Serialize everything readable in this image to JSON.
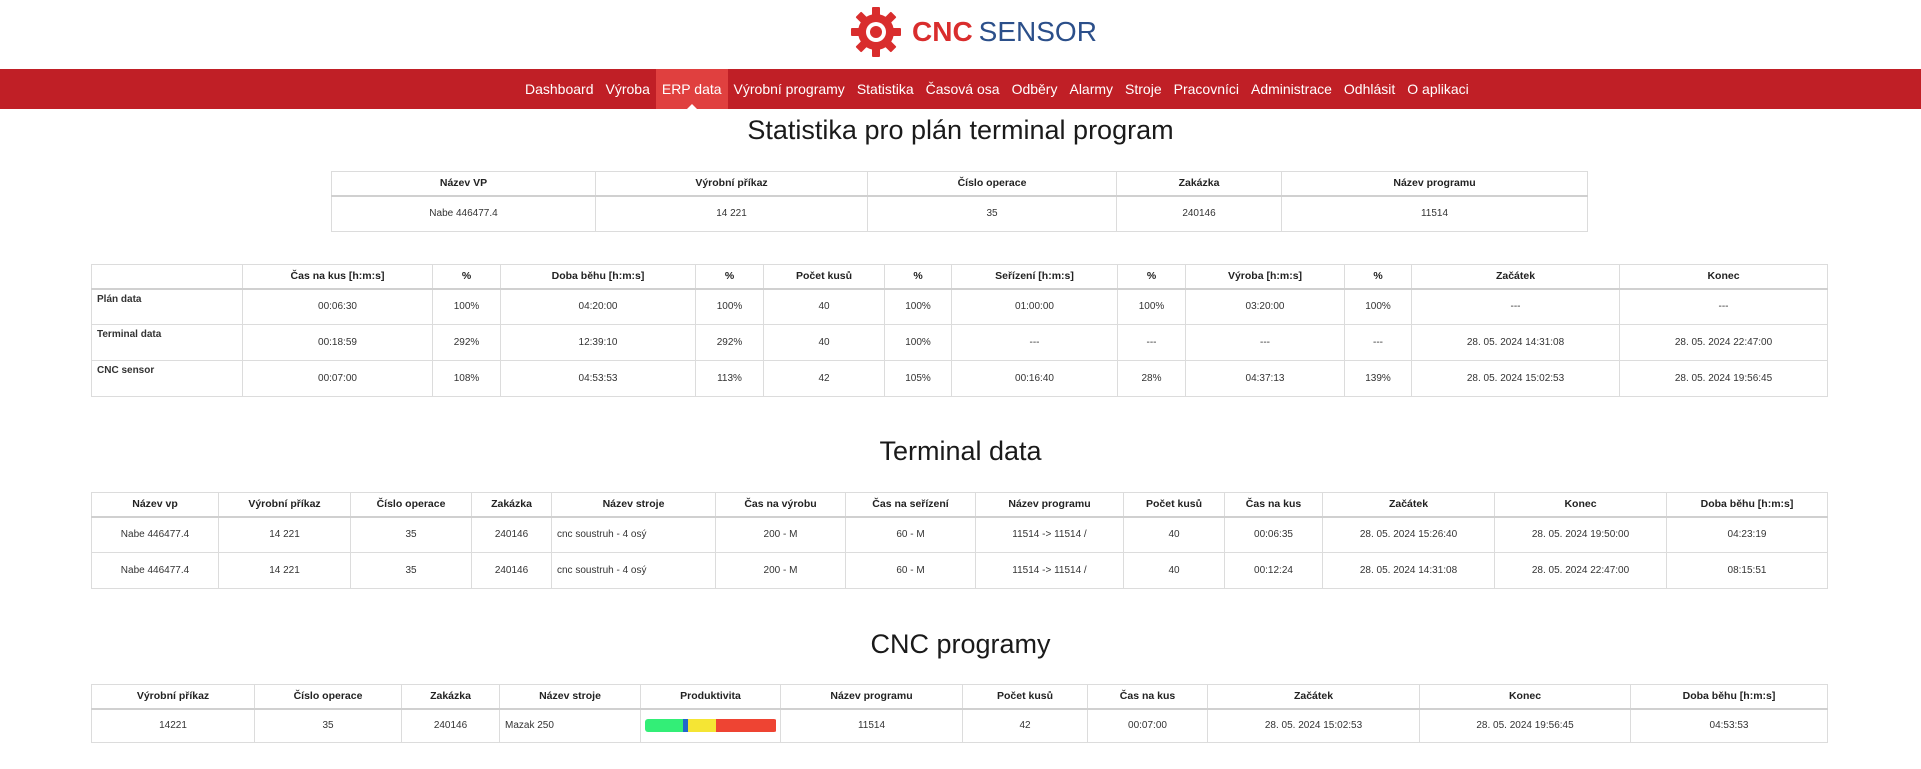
{
  "brand": {
    "cnc": "CNC",
    "sensor": "SENSOR"
  },
  "nav": [
    {
      "label": "Dashboard",
      "active": false
    },
    {
      "label": "Výroba",
      "active": false
    },
    {
      "label": "ERP data",
      "active": true
    },
    {
      "label": "Výrobní programy",
      "active": false
    },
    {
      "label": "Statistika",
      "active": false
    },
    {
      "label": "Časová osa",
      "active": false
    },
    {
      "label": "Odběry",
      "active": false
    },
    {
      "label": "Alarmy",
      "active": false
    },
    {
      "label": "Stroje",
      "active": false
    },
    {
      "label": "Pracovníci",
      "active": false
    },
    {
      "label": "Administrace",
      "active": false
    },
    {
      "label": "Odhlásit",
      "active": false
    },
    {
      "label": "O aplikaci",
      "active": false
    }
  ],
  "plan": {
    "title": "Statistika pro plán terminal program",
    "headers": [
      "Název VP",
      "Výrobní příkaz",
      "Číslo operace",
      "Zakázka",
      "Název programu"
    ],
    "row": [
      "Nabe 446477.4",
      "14 221",
      "35",
      "240146",
      "11514"
    ]
  },
  "stats": {
    "headers": [
      "",
      "Čas na kus [h:m:s]",
      "%",
      "Doba běhu [h:m:s]",
      "%",
      "Počet kusů",
      "%",
      "Seřízení [h:m:s]",
      "%",
      "Výroba [h:m:s]",
      "%",
      "Začátek",
      "Konec"
    ],
    "rows": [
      {
        "label": "Plán data",
        "cells": [
          "00:06:30",
          "100%",
          "04:20:00",
          "100%",
          "40",
          "100%",
          "01:00:00",
          "100%",
          "03:20:00",
          "100%",
          "---",
          "---"
        ]
      },
      {
        "label": "Terminal data",
        "cells": [
          "00:18:59",
          "292%",
          "12:39:10",
          "292%",
          "40",
          "100%",
          "---",
          "---",
          "---",
          "---",
          "28. 05. 2024 14:31:08",
          "28. 05. 2024 22:47:00"
        ]
      },
      {
        "label": "CNC sensor",
        "cells": [
          "00:07:00",
          "108%",
          "04:53:53",
          "113%",
          "42",
          "105%",
          "00:16:40",
          "28%",
          "04:37:13",
          "139%",
          "28. 05. 2024 15:02:53",
          "28. 05. 2024 19:56:45"
        ]
      }
    ]
  },
  "terminal": {
    "title": "Terminal data",
    "headers": [
      "Název vp",
      "Výrobní příkaz",
      "Číslo operace",
      "Zakázka",
      "Název stroje",
      "Čas na výrobu",
      "Čas na seřízení",
      "Název programu",
      "Počet kusů",
      "Čas na kus",
      "Začátek",
      "Konec",
      "Doba běhu [h:m:s]"
    ],
    "rows": [
      [
        "Nabe 446477.4",
        "14 221",
        "35",
        "240146",
        "cnc soustruh - 4 osý",
        "200 - M",
        "60 - M",
        "11514 -> 11514 /",
        "40",
        "00:06:35",
        "28. 05. 2024 15:26:40",
        "28. 05. 2024 19:50:00",
        "04:23:19"
      ],
      [
        "Nabe 446477.4",
        "14 221",
        "35",
        "240146",
        "cnc soustruh - 4 osý",
        "200 - M",
        "60 - M",
        "11514 -> 11514 /",
        "40",
        "00:12:24",
        "28. 05. 2024 14:31:08",
        "28. 05. 2024 22:47:00",
        "08:15:51"
      ]
    ]
  },
  "cnc": {
    "title": "CNC programy",
    "headers": [
      "Výrobní příkaz",
      "Číslo operace",
      "Zakázka",
      "Název stroje",
      "Produktivita",
      "Název programu",
      "Počet kusů",
      "Čas na kus",
      "Začátek",
      "Konec",
      "Doba běhu [h:m:s]"
    ],
    "row": {
      "prikaz": "14221",
      "operace": "35",
      "zakazka": "240146",
      "stroj": "Mazak 250",
      "produktivita": [
        {
          "share": 0.29,
          "color": "#33ee77"
        },
        {
          "share": 0.04,
          "color": "#2266cc"
        },
        {
          "share": 0.21,
          "color": "#f5e534"
        },
        {
          "share": 0.46,
          "color": "#ee4433"
        }
      ],
      "program": "11514",
      "kusy": "42",
      "cas_kus": "00:07:00",
      "zacatek": "28. 05. 2024 15:02:53",
      "konec": "28. 05. 2024 19:56:45",
      "doba": "04:53:53"
    }
  }
}
